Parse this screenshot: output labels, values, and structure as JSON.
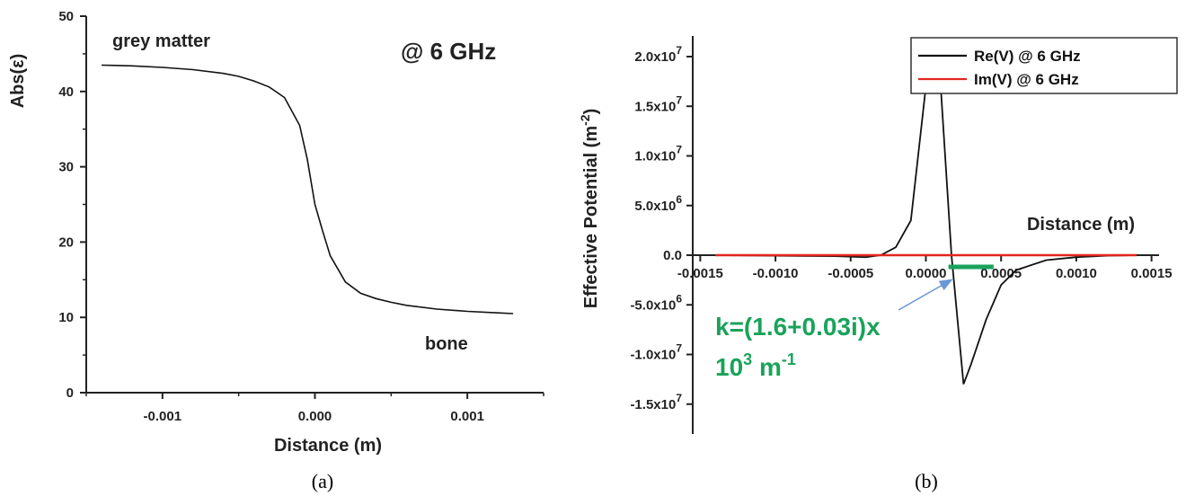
{
  "chart_data": [
    {
      "id": "a",
      "type": "line",
      "caption": "(a)",
      "xlabel": "Distance (m)",
      "ylabel": "Abs(ε)",
      "xlim": [
        -0.0015,
        0.0015
      ],
      "ylim": [
        0,
        50
      ],
      "xticks": [
        -0.001,
        0.0,
        0.001
      ],
      "xtick_labels": [
        "-0.001",
        "0.000",
        "0.001"
      ],
      "yticks": [
        0,
        10,
        20,
        30,
        40,
        50
      ],
      "ytick_labels": [
        "0",
        "10",
        "20",
        "30",
        "40",
        "50"
      ],
      "annotations": [
        "grey matter",
        "@ 6 GHz",
        "bone"
      ],
      "series": [
        {
          "color": "#111111",
          "x": [
            -0.0014,
            -0.0012,
            -0.001,
            -0.0008,
            -0.0006,
            -0.0005,
            -0.0004,
            -0.0003,
            -0.0002,
            -0.0001,
            -5e-05,
            0.0,
            5e-05,
            0.0001,
            0.0002,
            0.0003,
            0.0004,
            0.0005,
            0.0006,
            0.0008,
            0.001,
            0.0012,
            0.0013
          ],
          "y": [
            43.5,
            43.4,
            43.2,
            42.9,
            42.4,
            42.0,
            41.4,
            40.6,
            39.2,
            35.5,
            31.0,
            25.0,
            21.5,
            18.2,
            14.7,
            13.2,
            12.5,
            12.0,
            11.6,
            11.1,
            10.8,
            10.6,
            10.5
          ]
        }
      ]
    },
    {
      "id": "b",
      "type": "line",
      "caption": "(b)",
      "xlabel": "Distance (m)",
      "ylabel": "Effective Potential (m⁻²)",
      "ylabel_main": "Effective Potential (m",
      "ylabel_sup": "-2",
      "ylabel_end": ")",
      "xlim": [
        -0.00155,
        0.00155
      ],
      "ylim": [
        -17000000,
        21000000
      ],
      "xticks": [
        -0.0015,
        -0.001,
        -0.0005,
        0.0,
        0.0005,
        0.001,
        0.0015
      ],
      "xtick_labels": [
        "-0.0015",
        "-0.0010",
        "-0.0005",
        "0.0000",
        "0.0005",
        "0.0010",
        "0.0015"
      ],
      "yticks": [
        20000000,
        15000000,
        10000000,
        5000000,
        0,
        -5000000,
        -10000000,
        -15000000
      ],
      "ytick_labels": [
        {
          "mant": "2.0x10",
          "exp": "7"
        },
        {
          "mant": "1.5x10",
          "exp": "7"
        },
        {
          "mant": "1.0x10",
          "exp": "7"
        },
        {
          "mant": "5.0x10",
          "exp": "6"
        },
        {
          "mant": "0.0",
          "exp": ""
        },
        {
          "mant": "-5.0x10",
          "exp": "6"
        },
        {
          "mant": "-1.0x10",
          "exp": "7"
        },
        {
          "mant": "-1.5x10",
          "exp": "7"
        }
      ],
      "legend_position": "top-right",
      "series": [
        {
          "name": "Re(V) @ 6 GHz",
          "color": "#111111",
          "x": [
            -0.0014,
            -0.001,
            -0.0006,
            -0.0004,
            -0.0003,
            -0.0002,
            -0.0001,
            0.0,
            0.0001,
            0.00017,
            0.00025,
            0.0003,
            0.0004,
            0.0005,
            0.0006,
            0.0008,
            0.001,
            0.0012,
            0.0014
          ],
          "y": [
            0,
            -50000,
            -100000,
            -200000,
            0,
            800000,
            3500000,
            17000000,
            16700000,
            0,
            -13000000,
            -11000000,
            -6500000,
            -3000000,
            -1500000,
            -500000,
            -200000,
            -50000,
            0
          ]
        },
        {
          "name": "Im(V) @ 6 GHz",
          "color": "#e0271f",
          "x": [
            -0.0014,
            0.0014
          ],
          "y": [
            0,
            0
          ]
        }
      ],
      "annotation": {
        "line1": "k=(1.6+0.03i)x",
        "line2_base": "10",
        "line2_exp": "3",
        "line2_unit": " m",
        "line2_unit_exp": "-1",
        "color": "#19a35a",
        "bar_x": [
          0.00015,
          0.00045
        ]
      },
      "arrow_color": "#6a97d6"
    }
  ]
}
